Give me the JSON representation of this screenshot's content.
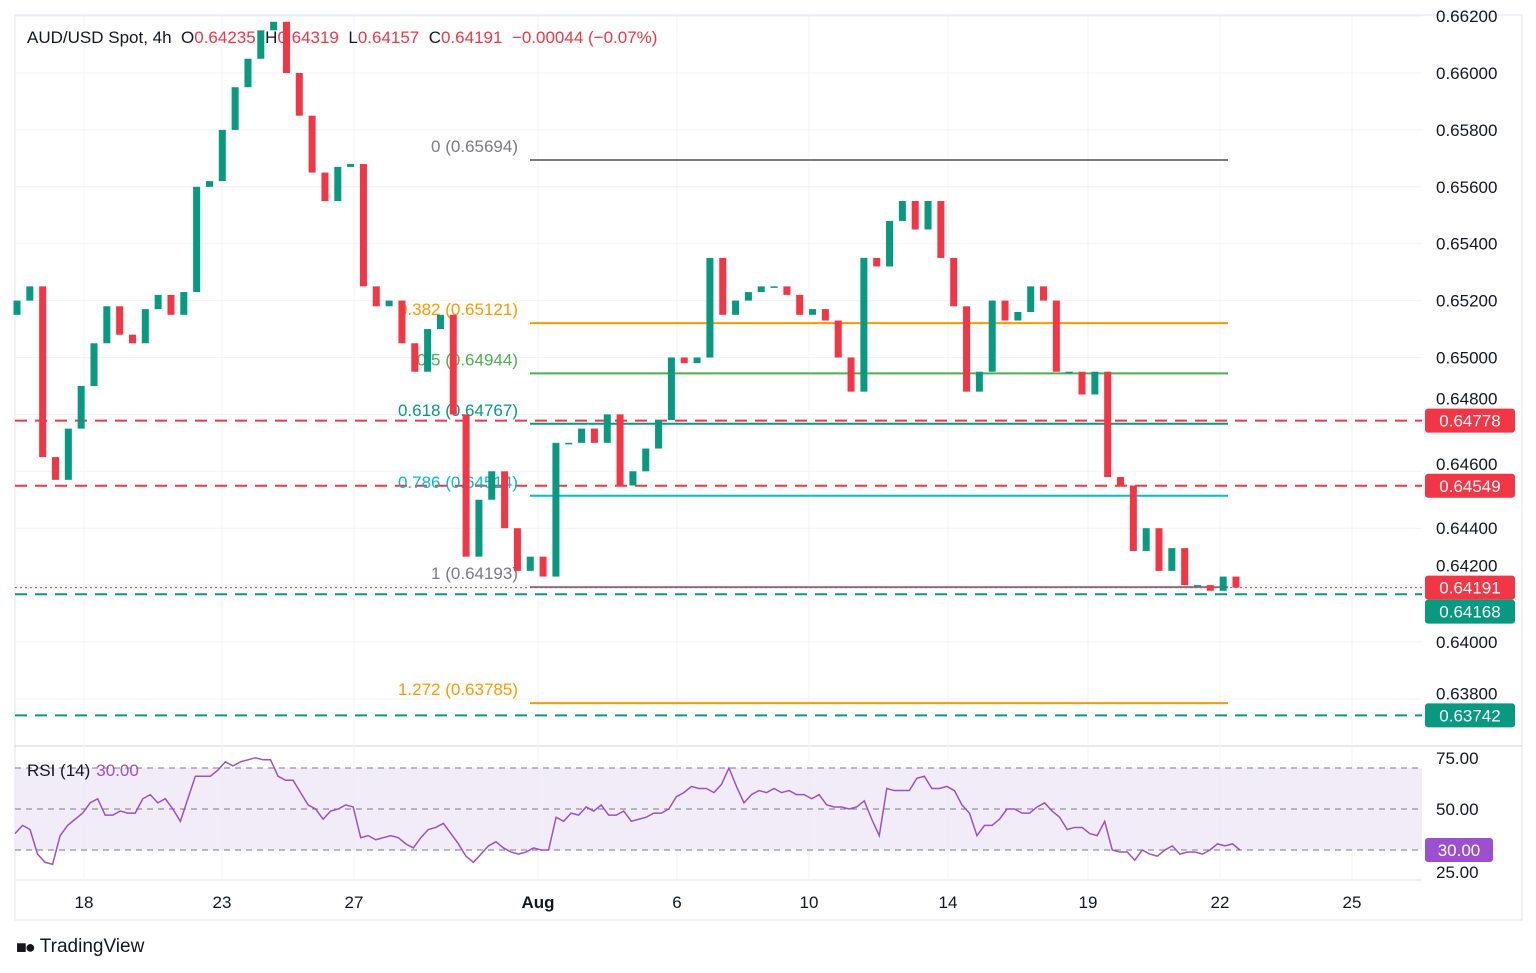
{
  "header": {
    "symbol": "AUD/USD Spot, 4h",
    "o_label": "O",
    "open": "0.64235",
    "h_label": "H",
    "high": "0.64319",
    "l_label": "L",
    "low": "0.64157",
    "c_label": "C",
    "close": "0.64191",
    "change": "−0.00044 (−0.07%)"
  },
  "rsi_legend": {
    "name": "RSI (14)",
    "value": "30.00"
  },
  "brand": "TradingView",
  "colors": {
    "up": "#089981",
    "down": "#f23645",
    "rsi": "#9c4fcf",
    "rsi_band": "#ede7f6"
  },
  "chart_data": [
    {
      "type": "candlestick",
      "title": "AUD/USD Spot, 4h",
      "ylim": [
        0.6366,
        0.6622
      ],
      "y_ticks": [
        "0.66200",
        "0.66000",
        "0.65800",
        "0.65600",
        "0.65400",
        "0.65200",
        "0.65000",
        "0.64800",
        "0.64600",
        "0.64400",
        "0.64200",
        "0.64000",
        "0.63800"
      ],
      "x_ticks": [
        "18",
        "23",
        "27",
        "Aug",
        "6",
        "10",
        "14",
        "19",
        "22",
        "25"
      ],
      "first_open": 0.6515,
      "closes": [
        0.652,
        0.6525,
        0.6465,
        0.6457,
        0.6475,
        0.649,
        0.6505,
        0.6518,
        0.6508,
        0.6505,
        0.6517,
        0.6522,
        0.6515,
        0.6523,
        0.656,
        0.6562,
        0.658,
        0.6595,
        0.6605,
        0.6615,
        0.6618,
        0.66,
        0.6585,
        0.6565,
        0.6555,
        0.6567,
        0.6568,
        0.6525,
        0.6518,
        0.652,
        0.6505,
        0.6495,
        0.651,
        0.6515,
        0.648,
        0.643,
        0.645,
        0.646,
        0.644,
        0.6425,
        0.643,
        0.6423,
        0.647,
        0.647,
        0.6475,
        0.647,
        0.648,
        0.6455,
        0.646,
        0.6468,
        0.6478,
        0.65,
        0.6498,
        0.65,
        0.6535,
        0.6515,
        0.652,
        0.6523,
        0.6525,
        0.6525,
        0.6522,
        0.6515,
        0.6517,
        0.6513,
        0.65,
        0.6488,
        0.6535,
        0.6532,
        0.6548,
        0.6555,
        0.6545,
        0.6555,
        0.6535,
        0.6518,
        0.6488,
        0.6495,
        0.652,
        0.6513,
        0.6516,
        0.6525,
        0.652,
        0.6495,
        0.6495,
        0.6487,
        0.6495,
        0.6458,
        0.6455,
        0.6432,
        0.644,
        0.6425,
        0.6433,
        0.642,
        0.642,
        0.6418,
        0.6423,
        0.64191
      ],
      "horizontal_levels": [
        {
          "value": 0.64778,
          "label": "0.64778",
          "style": "dashed",
          "color": "#f23645"
        },
        {
          "value": 0.64549,
          "label": "0.64549",
          "style": "dashed",
          "color": "#f23645"
        },
        {
          "value": 0.64168,
          "label": "0.64168",
          "style": "dashed",
          "color": "#089981"
        },
        {
          "value": 0.63742,
          "label": "0.63742",
          "style": "dashed",
          "color": "#089981"
        }
      ],
      "last_price": {
        "value": 0.64191,
        "label": "0.64191",
        "color": "#f23645"
      },
      "fibonacci": [
        {
          "ratio": "0",
          "value": 0.65694,
          "label": "0 (0.65694)",
          "color": "#787b86"
        },
        {
          "ratio": "0.382",
          "value": 0.65121,
          "label": "0.382 (0.65121)",
          "color": "#ff9800"
        },
        {
          "ratio": "0.5",
          "value": 0.64944,
          "label": "0.5 (0.64944)",
          "color": "#4caf50"
        },
        {
          "ratio": "0.618",
          "value": 0.64767,
          "label": "0.618 (0.64767)",
          "color": "#089981"
        },
        {
          "ratio": "0.786",
          "value": 0.64514,
          "label": "0.786 (0.64514)",
          "color": "#00bcd4"
        },
        {
          "ratio": "1",
          "value": 0.64193,
          "label": "1 (0.64193)",
          "color": "#787b86"
        },
        {
          "ratio": "1.272",
          "value": 0.63785,
          "label": "1.272 (0.63785)",
          "color": "#ff9800"
        }
      ]
    },
    {
      "type": "line",
      "title": "RSI (14)",
      "ylim": [
        20,
        78
      ],
      "y_ticks": [
        "75.00",
        "50.00",
        "25.00"
      ],
      "bands": [
        70,
        50,
        30
      ],
      "current": {
        "value": 30.0,
        "label": "30.00"
      },
      "values": [
        38,
        42,
        40,
        28,
        24,
        23,
        37,
        42,
        45,
        48,
        53,
        55,
        47,
        47,
        49,
        48,
        48,
        55,
        57,
        53,
        55,
        50,
        44,
        55,
        66,
        66,
        66,
        69,
        73,
        71,
        73,
        74,
        75,
        74,
        74,
        66,
        64,
        64,
        58,
        52,
        50,
        45,
        49,
        50,
        52,
        51,
        36,
        37,
        35,
        36,
        37,
        36,
        33,
        31,
        36,
        40,
        41,
        43,
        38,
        33,
        27,
        24,
        28,
        32,
        34,
        31,
        29,
        28,
        29,
        31,
        30,
        30,
        46,
        44,
        48,
        47,
        51,
        49,
        52,
        47,
        47,
        49,
        44,
        45,
        46,
        48,
        48,
        50,
        56,
        58,
        61,
        60,
        60,
        58,
        62,
        70,
        61,
        53,
        57,
        59,
        58,
        60,
        58,
        59,
        57,
        57,
        55,
        57,
        52,
        51,
        51,
        50,
        51,
        54,
        45,
        37,
        60,
        59,
        59,
        59,
        65,
        66,
        60,
        60,
        61,
        59,
        52,
        48,
        37,
        42,
        42,
        45,
        50,
        50,
        48,
        48,
        51,
        53,
        49,
        46,
        40,
        41,
        41,
        38,
        37,
        44,
        30,
        29,
        29,
        25,
        30,
        28,
        27,
        30,
        32,
        28,
        29,
        29,
        28,
        30,
        33,
        32,
        33,
        30
      ]
    }
  ]
}
